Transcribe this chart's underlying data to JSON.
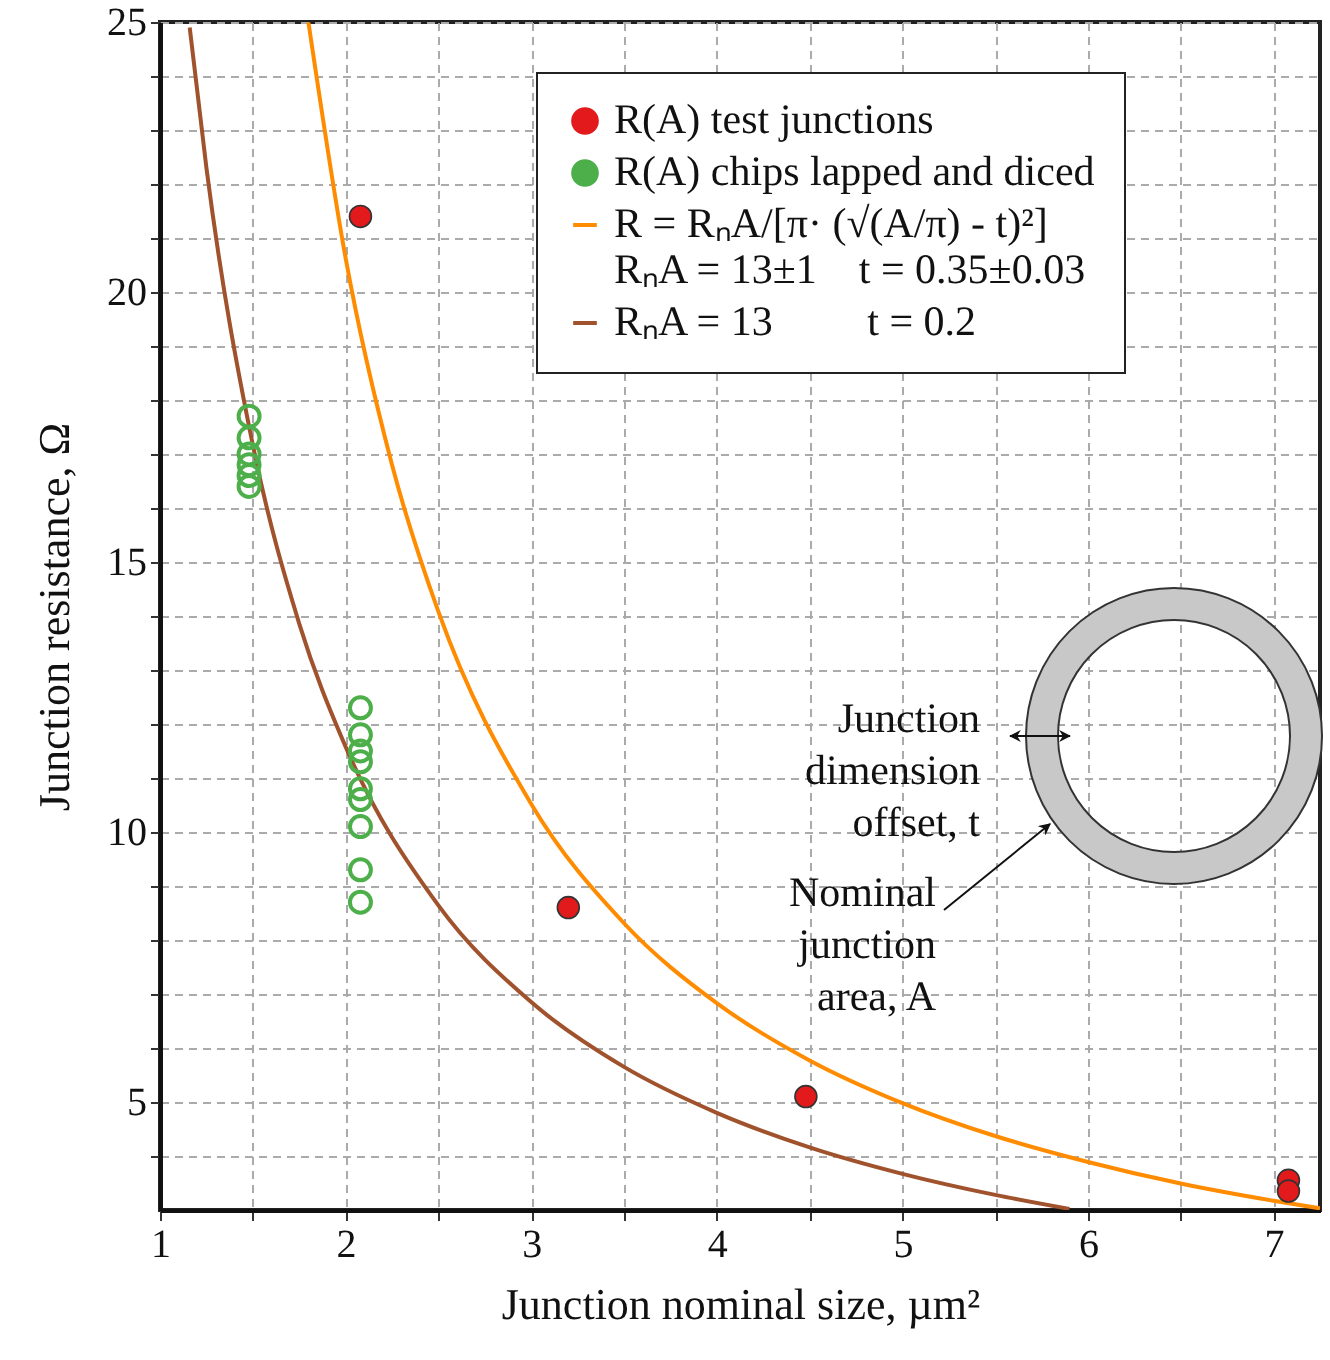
{
  "chart_data": {
    "type": "scatter",
    "xlabel": "Junction nominal size, µm²",
    "ylabel": "Junction resistance, Ω",
    "xlim": [
      1,
      7.25
    ],
    "ylim": [
      3,
      25
    ],
    "xticks": [
      1,
      {
        "value": 1.5,
        "label": null
      },
      2,
      {
        "value": 2.5,
        "label": null
      },
      3,
      {
        "value": 3.5,
        "label": null
      },
      4,
      {
        "value": 4.5,
        "label": null
      },
      5,
      {
        "value": 5.5,
        "label": null
      },
      6,
      {
        "value": 6.5,
        "label": null
      },
      7
    ],
    "yticks": [
      {
        "value": 4,
        "label": null
      },
      5,
      {
        "value": 6,
        "label": null
      },
      {
        "value": 7,
        "label": null
      },
      {
        "value": 8,
        "label": null
      },
      {
        "value": 9,
        "label": null
      },
      10,
      {
        "value": 11,
        "label": null
      },
      {
        "value": 12,
        "label": null
      },
      {
        "value": 13,
        "label": null
      },
      {
        "value": 14,
        "label": null
      },
      15,
      {
        "value": 16,
        "label": null
      },
      {
        "value": 17,
        "label": null
      },
      {
        "value": 18,
        "label": null
      },
      {
        "value": 19,
        "label": null
      },
      20,
      {
        "value": 21,
        "label": null
      },
      {
        "value": 22,
        "label": null
      },
      {
        "value": 23,
        "label": null
      },
      {
        "value": 24,
        "label": null
      },
      25
    ],
    "grid": true,
    "legend": "top right",
    "series": [
      {
        "name": "R(A) test junctions",
        "marker": "circle",
        "color": "#e31a1c",
        "x": [
          2.08,
          3.2,
          4.48,
          7.08,
          7.08
        ],
        "values": [
          21.4,
          8.6,
          5.1,
          3.55,
          3.35
        ]
      },
      {
        "name": "R(A) chips lapped and diced",
        "marker": "circle-open",
        "color": "#4daf4a",
        "x": [
          1.48,
          1.48,
          1.48,
          1.48,
          1.48,
          1.48,
          2.08,
          2.08,
          2.08,
          2.08,
          2.08,
          2.08,
          2.08,
          2.08,
          2.08
        ],
        "values": [
          17.7,
          17.3,
          17.0,
          16.8,
          16.6,
          16.4,
          12.3,
          11.8,
          11.5,
          11.3,
          10.8,
          10.6,
          10.1,
          9.3,
          8.7
        ]
      },
      {
        "name": "R = RₙA/[π· (√(A/π) - t)²]\nRₙA = 13±1    t = 0.35±0.03",
        "type": "line",
        "marker": "none",
        "color": "#ff8c00",
        "x": [
          1.8,
          2.0,
          2.25,
          2.5,
          3,
          3.5,
          4,
          4.5,
          5,
          5.5,
          6,
          6.5,
          7,
          7.25
        ],
        "values": [
          24.99,
          20.63,
          16.8,
          14.08,
          10.52,
          8.31,
          6.83,
          5.77,
          4.98,
          4.37,
          3.89,
          3.49,
          3.17,
          3.03
        ]
      },
      {
        "name": "RₙA = 13         t = 0.2",
        "type": "line",
        "marker": "none",
        "color": "#a0522d",
        "x": [
          1.16,
          1.25,
          1.5,
          1.75,
          2,
          2.5,
          3,
          3.5,
          4,
          4.5,
          5,
          5.5,
          5.9
        ],
        "values": [
          24.9,
          22.3,
          17.17,
          13.86,
          11.58,
          8.64,
          6.85,
          5.65,
          4.8,
          4.16,
          3.67,
          3.28,
          3.02
        ]
      }
    ],
    "annotations": [
      "Junction dimension offset, t",
      "Nominal junction area, A"
    ]
  }
}
